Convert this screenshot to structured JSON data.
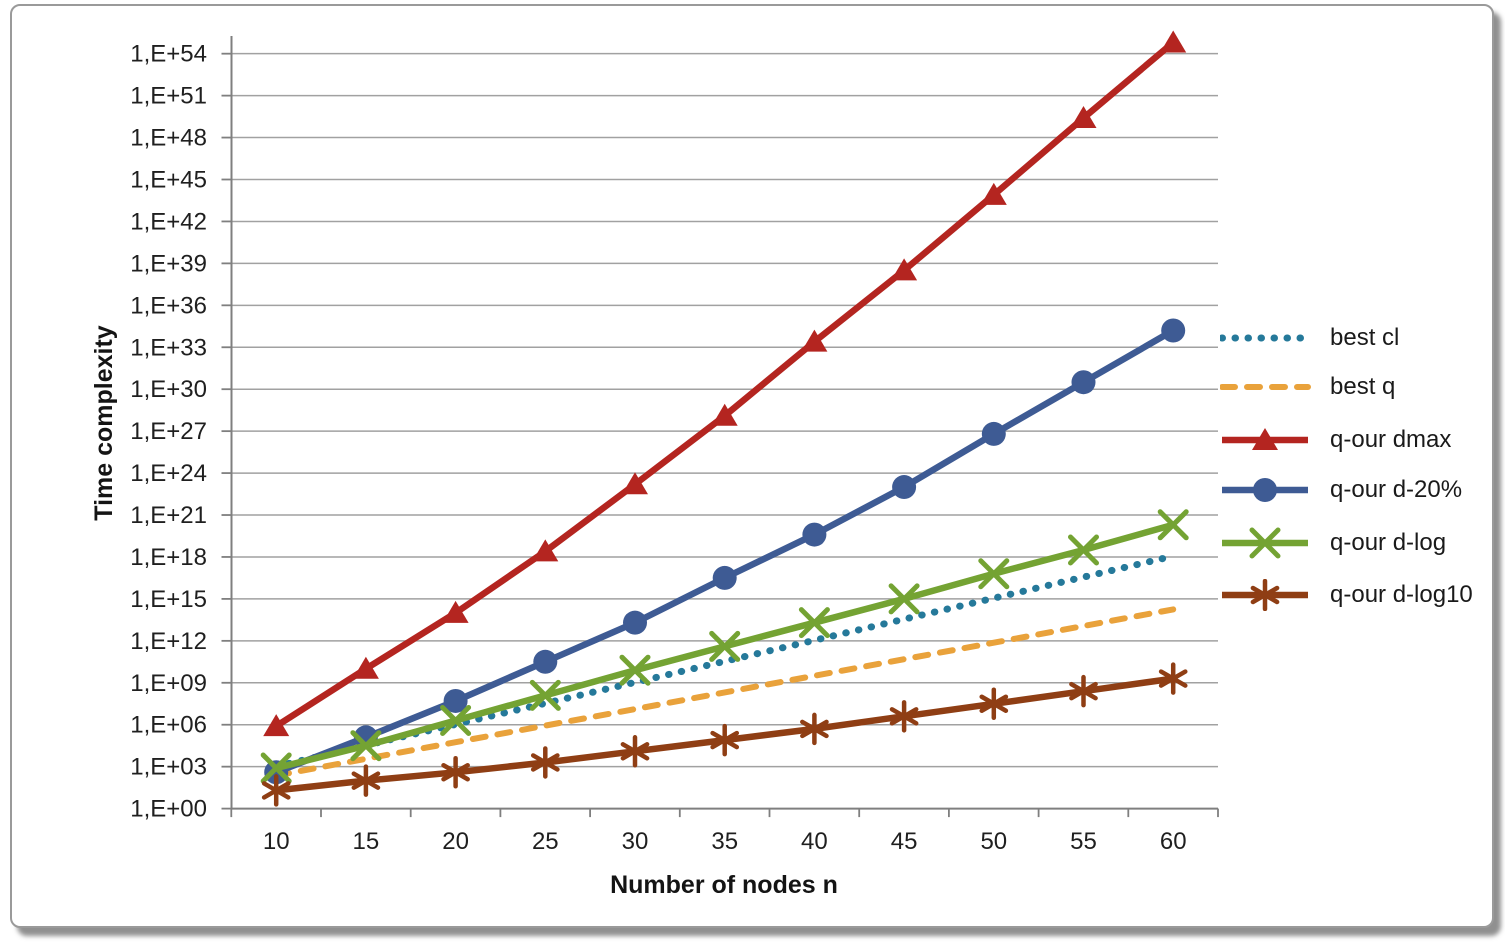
{
  "chart_data": {
    "type": "line",
    "title": "",
    "xlabel": "Number of nodes n",
    "ylabel": "Time complexity",
    "x": [
      10,
      15,
      20,
      25,
      30,
      35,
      40,
      45,
      50,
      55,
      60
    ],
    "y_scale": "log",
    "ylim_exponents": [
      0,
      54
    ],
    "grid": true,
    "legend_position": "right",
    "y_tick_labels": [
      "1,E+00",
      "1,E+03",
      "1,E+06",
      "1,E+09",
      "1,E+12",
      "1,E+15",
      "1,E+18",
      "1,E+21",
      "1,E+24",
      "1,E+27",
      "1,E+30",
      "1,E+33",
      "1,E+36",
      "1,E+39",
      "1,E+42",
      "1,E+45",
      "1,E+48",
      "1,E+51",
      "1,E+54"
    ],
    "series": [
      {
        "name": "best cl",
        "color": "#25799A",
        "line": "dotted",
        "marker": "none",
        "log10_values": [
          3.01,
          4.52,
          6.02,
          7.53,
          9.03,
          10.54,
          12.04,
          13.55,
          15.05,
          16.56,
          18.06
        ],
        "values": [
          1000.0,
          33000.0,
          1000000.0,
          34000000.0,
          1100000000.0,
          34000000000.0,
          1100000000000.0,
          35000000000000.0,
          1100000000000000.0,
          3.6e+16,
          1.2e+18
        ]
      },
      {
        "name": "best q",
        "color": "#E9A23B",
        "line": "dashed",
        "marker": "none",
        "log10_values": [
          2.37,
          3.56,
          4.75,
          5.94,
          7.12,
          8.31,
          9.5,
          10.69,
          11.87,
          13.06,
          14.25
        ],
        "values": [
          240.0,
          3700.0,
          56000.0,
          860000.0,
          13000000.0,
          200000000.0,
          3200000000.0,
          49000000000.0,
          750000000000.0,
          11000000000000.0,
          180000000000000.0
        ]
      },
      {
        "name": "q-our dmax",
        "color": "#B42520",
        "line": "solid",
        "marker": "triangle",
        "log10_values": [
          5.9,
          10.0,
          14.0,
          18.4,
          23.2,
          28.1,
          33.4,
          38.5,
          43.9,
          49.4,
          54.8
        ],
        "values": [
          800000.0,
          10000000000.0,
          100000000000000.0,
          2.5e+18,
          1.6e+23,
          1.3e+28,
          2.5e+33,
          3e+38,
          8e+43,
          2.5e+49,
          6e+54
        ]
      },
      {
        "name": "q-our d-20%",
        "color": "#3E5B94",
        "line": "solid",
        "marker": "circle",
        "log10_values": [
          2.6,
          5.1,
          7.7,
          10.5,
          13.3,
          16.5,
          19.6,
          23.0,
          26.8,
          30.5,
          34.2
        ],
        "values": [
          400.0,
          130000.0,
          50000000.0,
          30000000000.0,
          20000000000000.0,
          3e+16,
          4e+19,
          1e+23,
          6e+26,
          3e+30,
          1.6e+34
        ]
      },
      {
        "name": "q-our d-log",
        "color": "#74A333",
        "line": "solid",
        "marker": "x",
        "log10_values": [
          2.9,
          4.5,
          6.3,
          8.1,
          9.9,
          11.6,
          13.3,
          15.0,
          16.8,
          18.5,
          20.3
        ],
        "values": [
          800.0,
          30000.0,
          2000000.0,
          130000000.0,
          8000000000.0,
          400000000000.0,
          20000000000000.0,
          1000000000000000.0,
          6e+16,
          3e+18,
          2e+20
        ]
      },
      {
        "name": "q-our d-log10",
        "color": "#8F3E14",
        "line": "solid",
        "marker": "asterisk",
        "log10_values": [
          1.3,
          2.0,
          2.6,
          3.3,
          4.1,
          4.9,
          5.7,
          6.6,
          7.5,
          8.4,
          9.3
        ],
        "values": [
          20.0,
          100.0,
          400.0,
          2000.0,
          13000.0,
          80000.0,
          500000.0,
          4000000.0,
          30000000.0,
          250000000.0,
          2000000000.0
        ]
      }
    ]
  }
}
